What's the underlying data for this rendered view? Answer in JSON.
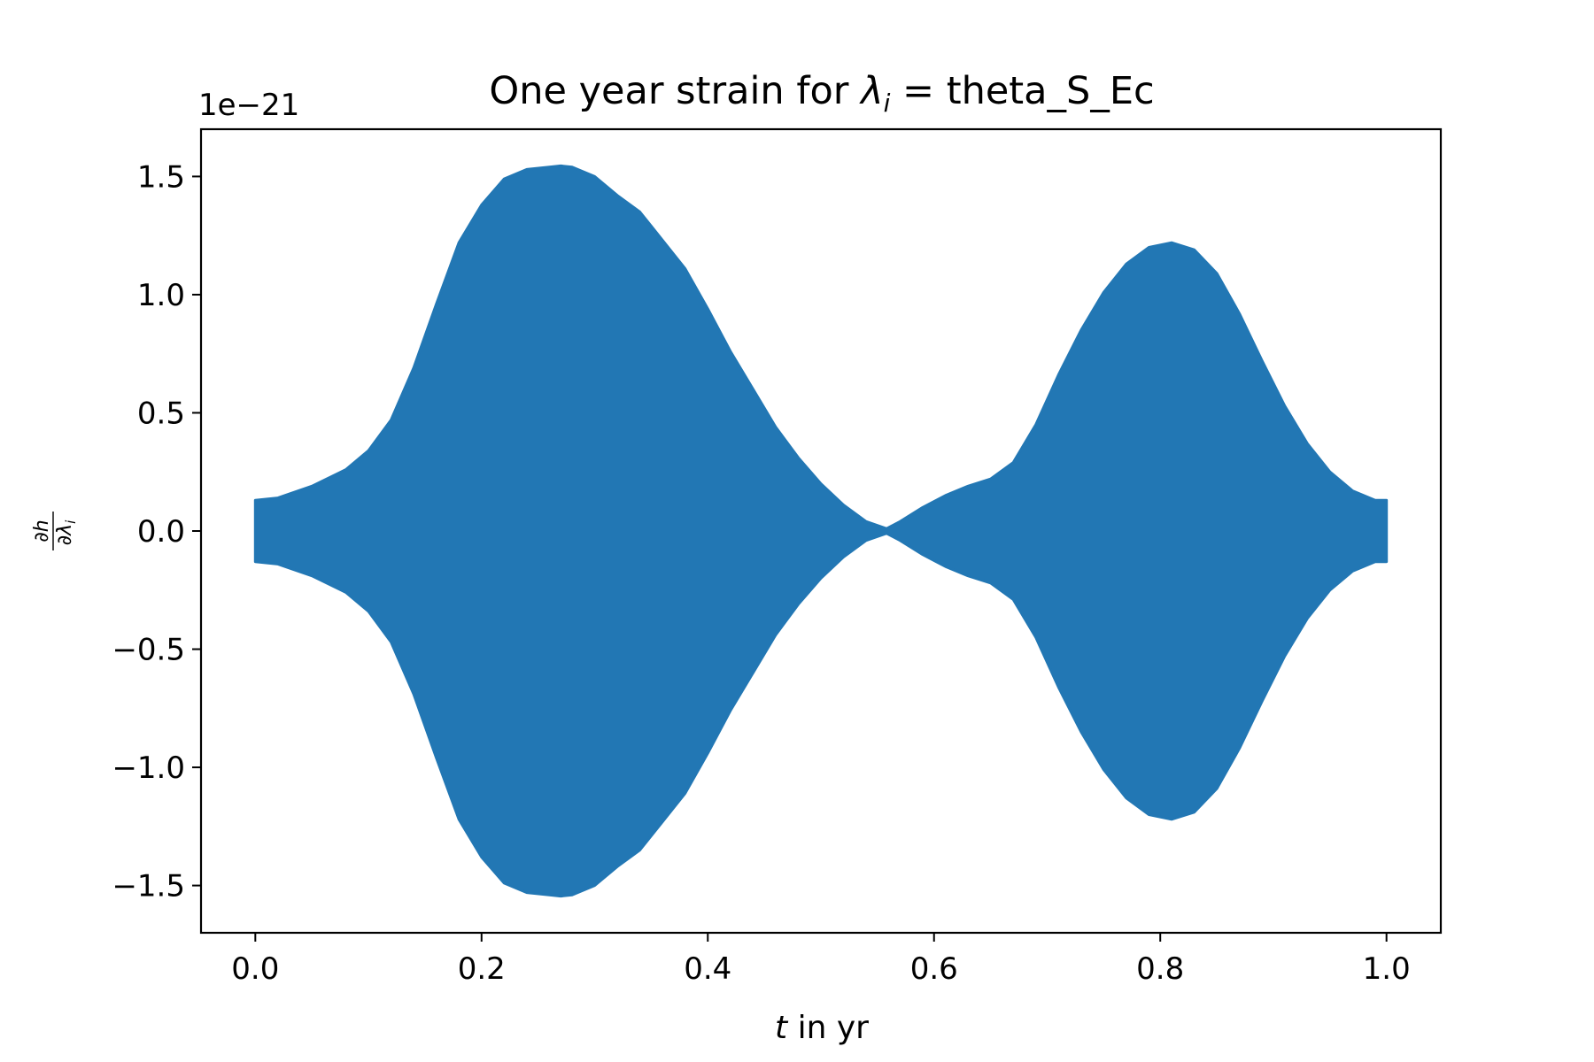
{
  "chart_data": {
    "type": "area",
    "title": {
      "prefix": "One year strain for ",
      "symbol": "λ",
      "symbol_sub": "i",
      "suffix": " = theta_S_Ec"
    },
    "xlabel": {
      "var": "t",
      "rest": " in yr"
    },
    "ylabel": {
      "numerator": "∂h",
      "denominator": "∂λ",
      "denominator_sub": "i"
    },
    "y_offset_label": "1e−21",
    "x_ticks": [
      {
        "value": 0.0,
        "label": "0.0"
      },
      {
        "value": 0.2,
        "label": "0.2"
      },
      {
        "value": 0.4,
        "label": "0.4"
      },
      {
        "value": 0.6,
        "label": "0.6"
      },
      {
        "value": 0.8,
        "label": "0.8"
      },
      {
        "value": 1.0,
        "label": "1.0"
      }
    ],
    "y_ticks": [
      {
        "value": 1.5,
        "label": "1.5"
      },
      {
        "value": 1.0,
        "label": "1.0"
      },
      {
        "value": 0.5,
        "label": "0.5"
      },
      {
        "value": 0.0,
        "label": "0.0"
      },
      {
        "value": -0.5,
        "label": "−0.5"
      },
      {
        "value": -1.0,
        "label": "−1.0"
      },
      {
        "value": -1.5,
        "label": "−1.5"
      }
    ],
    "xlim": [
      -0.048,
      1.048
    ],
    "ylim": [
      -1.7,
      1.7
    ],
    "grid": false,
    "series_color": "#2277b4",
    "envelope": {
      "x": [
        0.0,
        0.02,
        0.05,
        0.08,
        0.1,
        0.12,
        0.14,
        0.16,
        0.18,
        0.2,
        0.22,
        0.24,
        0.26,
        0.27,
        0.28,
        0.3,
        0.32,
        0.34,
        0.36,
        0.38,
        0.4,
        0.42,
        0.44,
        0.46,
        0.48,
        0.5,
        0.52,
        0.54,
        0.558,
        0.57,
        0.59,
        0.61,
        0.63,
        0.65,
        0.67,
        0.69,
        0.71,
        0.73,
        0.75,
        0.77,
        0.79,
        0.81,
        0.83,
        0.85,
        0.87,
        0.89,
        0.91,
        0.93,
        0.95,
        0.97,
        0.99,
        1.0
      ],
      "upper": [
        0.13,
        0.14,
        0.19,
        0.26,
        0.34,
        0.47,
        0.69,
        0.96,
        1.22,
        1.38,
        1.49,
        1.53,
        1.54,
        1.545,
        1.54,
        1.5,
        1.42,
        1.35,
        1.23,
        1.11,
        0.94,
        0.76,
        0.6,
        0.44,
        0.31,
        0.2,
        0.11,
        0.04,
        0.01,
        0.04,
        0.1,
        0.15,
        0.19,
        0.22,
        0.29,
        0.45,
        0.66,
        0.85,
        1.01,
        1.13,
        1.2,
        1.22,
        1.19,
        1.09,
        0.92,
        0.72,
        0.53,
        0.37,
        0.25,
        0.17,
        0.13,
        0.13
      ],
      "lower": [
        -0.13,
        -0.14,
        -0.19,
        -0.26,
        -0.34,
        -0.47,
        -0.69,
        -0.96,
        -1.22,
        -1.38,
        -1.49,
        -1.53,
        -1.54,
        -1.545,
        -1.54,
        -1.5,
        -1.42,
        -1.35,
        -1.23,
        -1.11,
        -0.94,
        -0.76,
        -0.6,
        -0.44,
        -0.31,
        -0.2,
        -0.11,
        -0.04,
        -0.01,
        -0.04,
        -0.1,
        -0.15,
        -0.19,
        -0.22,
        -0.29,
        -0.45,
        -0.66,
        -0.85,
        -1.01,
        -1.13,
        -1.2,
        -1.22,
        -1.19,
        -1.09,
        -0.92,
        -0.72,
        -0.53,
        -0.37,
        -0.25,
        -0.17,
        -0.13,
        -0.13
      ]
    }
  }
}
